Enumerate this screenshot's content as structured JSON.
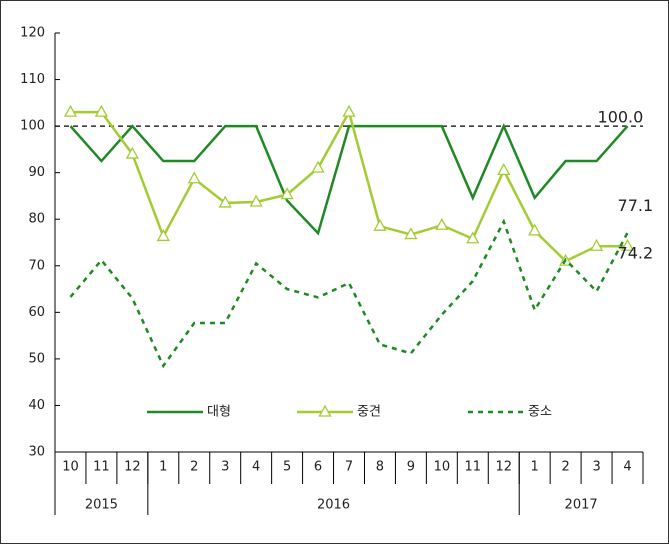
{
  "chart_data": {
    "type": "line",
    "categories": [
      "10",
      "11",
      "12",
      "1",
      "2",
      "3",
      "4",
      "5",
      "6",
      "7",
      "8",
      "9",
      "10",
      "11",
      "12",
      "1",
      "2",
      "3",
      "4"
    ],
    "years": [
      "2015",
      "2016",
      "2017"
    ],
    "year_spans": [
      3,
      12,
      4
    ],
    "series": [
      {
        "name": "대형",
        "color": "#1f8a24",
        "style": "solid",
        "marker": false,
        "values": [
          100,
          92.5,
          100,
          92.5,
          92.5,
          100,
          100,
          84,
          77,
          100,
          100,
          100,
          100,
          84.6,
          100,
          84.6,
          92.5,
          92.5,
          100
        ]
      },
      {
        "name": "중견",
        "color": "#a3cc33",
        "style": "solid",
        "marker": true,
        "values": [
          103,
          103,
          94,
          76.3,
          88.7,
          83.5,
          83.7,
          85.3,
          91,
          103,
          78.5,
          76.7,
          78.7,
          75.8,
          90.5,
          77.5,
          71,
          74.2,
          74.2
        ]
      },
      {
        "name": "중소",
        "color": "#1f8a24",
        "style": "dashed",
        "marker": false,
        "values": [
          63.3,
          71.2,
          63,
          48.5,
          57.7,
          57.7,
          70.5,
          65,
          63.2,
          66.3,
          53.1,
          51.2,
          59.5,
          66.7,
          79.5,
          60.5,
          71.3,
          64.5,
          77.1
        ]
      }
    ],
    "reference_line": 100,
    "annotations": [
      "100.0",
      "77.1",
      "74.2"
    ],
    "ylim": [
      30,
      120
    ],
    "yticks": [
      30,
      40,
      50,
      60,
      70,
      80,
      90,
      100,
      110,
      120
    ]
  }
}
